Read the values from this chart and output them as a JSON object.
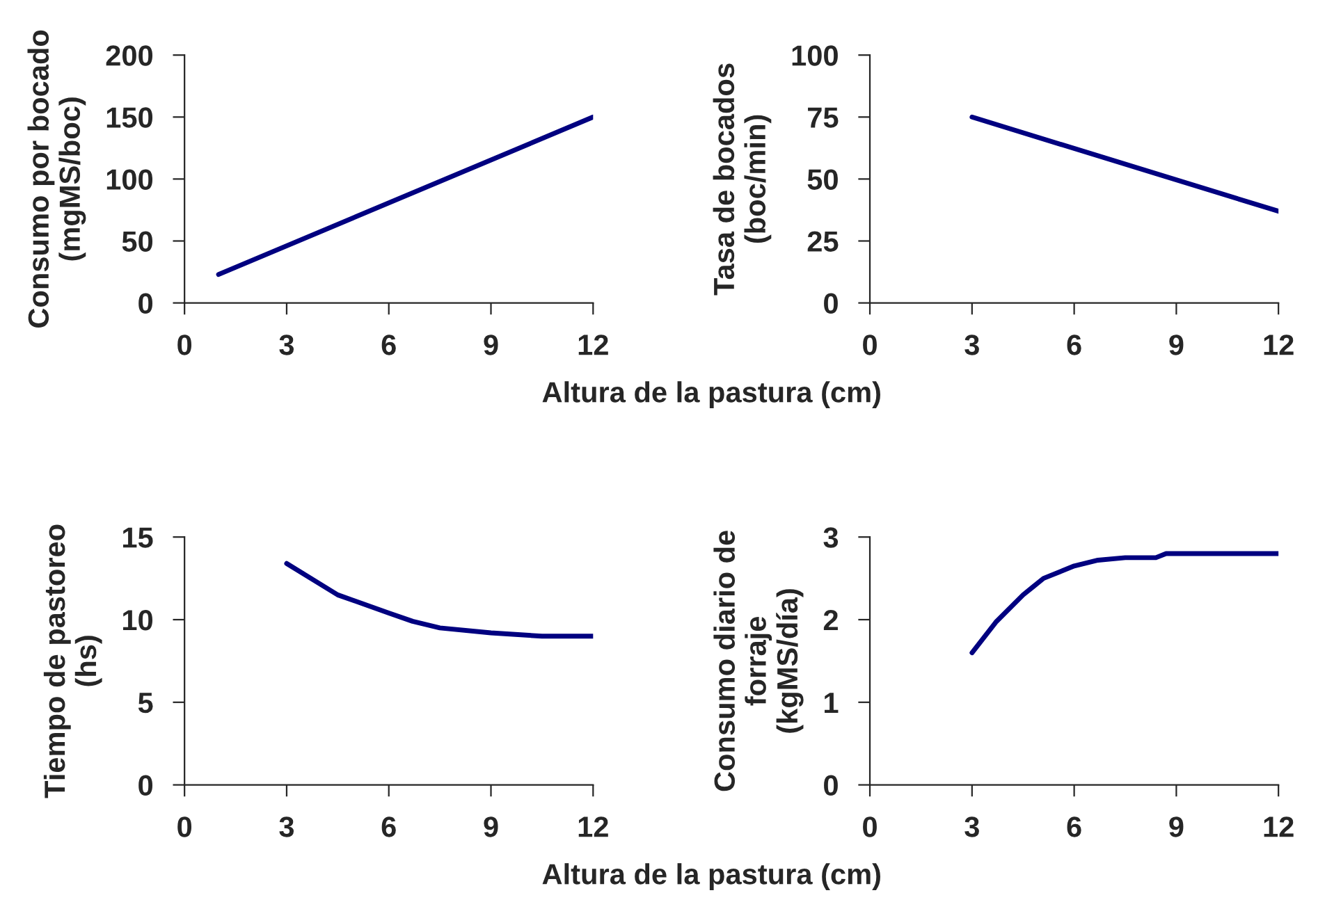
{
  "chart_data": [
    {
      "type": "line",
      "ylabel": "Consumo por bocado\n(mgMS/boc)",
      "xlabel": "Altura de la pastura (cm)",
      "xlim": [
        0,
        12
      ],
      "xticks": [
        0,
        3,
        6,
        9,
        12
      ],
      "ylim": [
        0,
        200
      ],
      "yticks": [
        0,
        50,
        100,
        150,
        200
      ],
      "grid": false,
      "legend": false,
      "series": [
        {
          "color": "#000080",
          "x": [
            1,
            12
          ],
          "values": [
            23,
            150
          ]
        }
      ]
    },
    {
      "type": "line",
      "ylabel": "Tasa de bocados\n(boc/min)",
      "xlim": [
        0,
        12
      ],
      "xticks": [
        0,
        3,
        6,
        9,
        12
      ],
      "ylim": [
        0,
        100
      ],
      "yticks": [
        0,
        25,
        50,
        75,
        100
      ],
      "grid": false,
      "legend": false,
      "series": [
        {
          "color": "#000080",
          "x": [
            3,
            12
          ],
          "values": [
            75,
            37
          ]
        }
      ]
    },
    {
      "type": "line",
      "ylabel": "Tiempo de pastoreo\n(hs)",
      "xlabel": "Altura de la pastura (cm)",
      "xlim": [
        0,
        12
      ],
      "xticks": [
        0,
        3,
        6,
        9,
        12
      ],
      "ylim": [
        0,
        15
      ],
      "yticks": [
        0,
        5,
        10,
        15
      ],
      "grid": false,
      "legend": false,
      "series": [
        {
          "color": "#000080",
          "x": [
            3,
            4.5,
            6,
            6.7,
            7.5,
            9,
            10.5,
            12
          ],
          "values": [
            13.4,
            11.5,
            10.4,
            9.9,
            9.5,
            9.2,
            9.0,
            9.0
          ]
        }
      ]
    },
    {
      "type": "line",
      "ylabel": "Consumo diario de\nforraje\n(kgMS/día)",
      "xlim": [
        0,
        12
      ],
      "xticks": [
        0,
        3,
        6,
        9,
        12
      ],
      "ylim": [
        0,
        3
      ],
      "yticks": [
        0,
        1,
        2,
        3
      ],
      "grid": false,
      "legend": false,
      "series": [
        {
          "color": "#000080",
          "x": [
            3,
            3.7,
            4.5,
            4.8,
            5.1,
            6,
            6.7,
            7.5,
            8.4,
            8.7,
            12
          ],
          "values": [
            1.6,
            1.97,
            2.3,
            2.4,
            2.5,
            2.65,
            2.72,
            2.75,
            2.75,
            2.8,
            2.8
          ]
        }
      ]
    }
  ]
}
